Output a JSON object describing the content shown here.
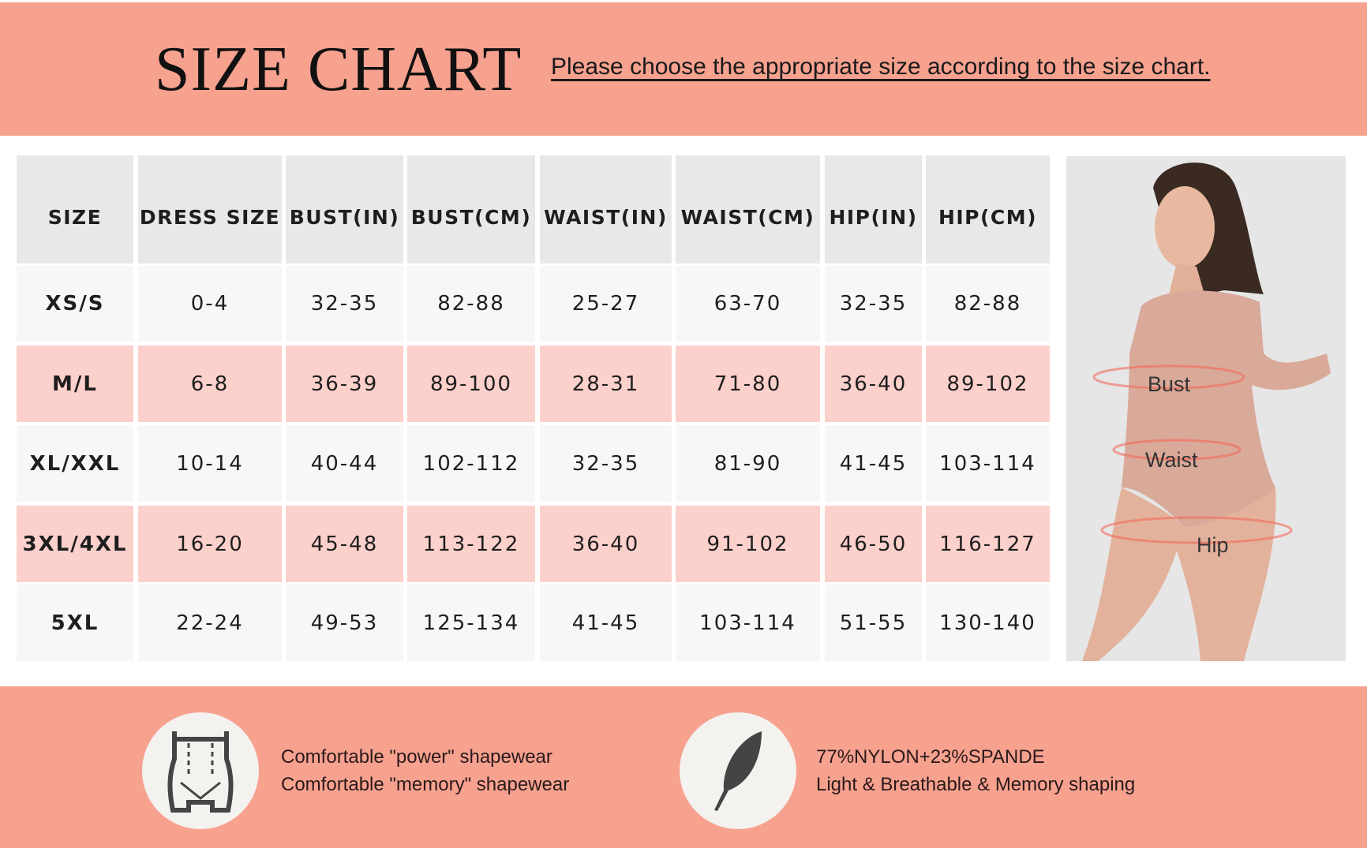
{
  "header": {
    "title": "SIZE CHART",
    "subtitle": "Please choose the appropriate size according to the size chart."
  },
  "table": {
    "columns": [
      "SIZE",
      "DRESS SIZE",
      "BUST(IN)",
      "BUST(CM)",
      "WAIST(IN)",
      "WAIST(CM)",
      "HIP(IN)",
      "HIP(CM)"
    ],
    "rows": [
      [
        "XS/S",
        "0-4",
        "32-35",
        "82-88",
        "25-27",
        "63-70",
        "32-35",
        "82-88"
      ],
      [
        "M/L",
        "6-8",
        "36-39",
        "89-100",
        "28-31",
        "71-80",
        "36-40",
        "89-102"
      ],
      [
        "XL/XXL",
        "10-14",
        "40-44",
        "102-112",
        "32-35",
        "81-90",
        "41-45",
        "103-114"
      ],
      [
        "3XL/4XL",
        "16-20",
        "45-48",
        "113-122",
        "36-40",
        "91-102",
        "46-50",
        "116-127"
      ],
      [
        "5XL",
        "22-24",
        "49-53",
        "125-134",
        "41-45",
        "103-114",
        "51-55",
        "130-140"
      ]
    ]
  },
  "photo": {
    "labels": {
      "bust": "Bust",
      "waist": "Waist",
      "hip": "Hip"
    }
  },
  "footer": {
    "left": {
      "icon": "shapewear-icon",
      "line1": "Comfortable \"power\" shapewear",
      "line2": "Comfortable \"memory\" shapewear"
    },
    "right": {
      "icon": "feather-icon",
      "line1": "77%NYLON+23%SPANDE",
      "line2": "Light & Breathable & Memory shaping"
    }
  },
  "colors": {
    "banner": "#f7a18f",
    "header_cell": "#e8e8e8",
    "row_light": "#f7f7f7",
    "row_pink": "#fcd0cb"
  }
}
